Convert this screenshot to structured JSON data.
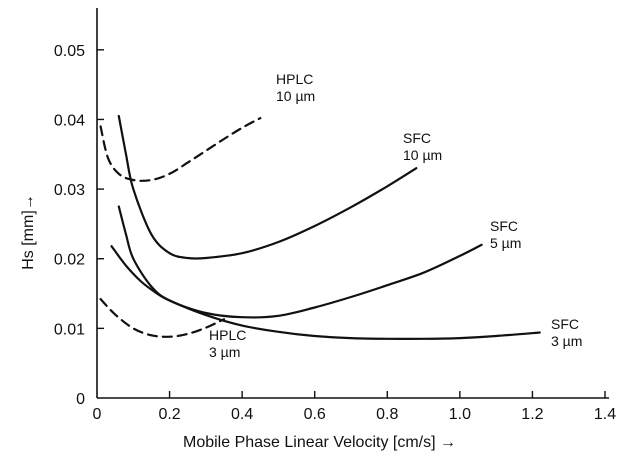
{
  "chart_data": {
    "type": "line",
    "title": "",
    "xlabel": "Mobile Phase  Linear Velocity [cm/s]   →",
    "ylabel": "Hs [mm]→",
    "xlim": [
      0,
      1.4
    ],
    "ylim": [
      0,
      0.055
    ],
    "x_ticks": [
      "0",
      "0.2",
      "0.4",
      "0.6",
      "0.8",
      "1.0",
      "1.2",
      "1.4"
    ],
    "y_ticks": [
      "0",
      "0.01",
      "0.02",
      "0.03",
      "0.04",
      "0.05"
    ],
    "grid": false,
    "series": [
      {
        "name_lines": [
          "HPLC",
          "10 µm"
        ],
        "dashed": true,
        "x": [
          0.01,
          0.03,
          0.06,
          0.1,
          0.15,
          0.2,
          0.25,
          0.3,
          0.35,
          0.4,
          0.45
        ],
        "y": [
          0.039,
          0.0345,
          0.0322,
          0.0313,
          0.0313,
          0.0322,
          0.0338,
          0.0355,
          0.0372,
          0.0388,
          0.0402
        ]
      },
      {
        "name_lines": [
          "HPLC",
          "3 µm"
        ],
        "dashed": true,
        "x": [
          0.01,
          0.05,
          0.1,
          0.15,
          0.2,
          0.25,
          0.3,
          0.35
        ],
        "y": [
          0.0142,
          0.012,
          0.01,
          0.009,
          0.0088,
          0.0092,
          0.0101,
          0.0113
        ]
      },
      {
        "name_lines": [
          "SFC",
          "10 µm"
        ],
        "dashed": false,
        "x": [
          0.06,
          0.08,
          0.1,
          0.15,
          0.2,
          0.25,
          0.3,
          0.4,
          0.5,
          0.6,
          0.7,
          0.8,
          0.88
        ],
        "y": [
          0.0405,
          0.035,
          0.03,
          0.0235,
          0.0208,
          0.0201,
          0.0201,
          0.0208,
          0.0224,
          0.0247,
          0.0274,
          0.0304,
          0.033
        ]
      },
      {
        "name_lines": [
          "SFC",
          "5 µm"
        ],
        "dashed": false,
        "x": [
          0.06,
          0.08,
          0.1,
          0.15,
          0.2,
          0.3,
          0.4,
          0.5,
          0.6,
          0.7,
          0.8,
          0.9,
          1.0,
          1.06
        ],
        "y": [
          0.0275,
          0.0235,
          0.02,
          0.016,
          0.014,
          0.0122,
          0.0116,
          0.0118,
          0.013,
          0.0145,
          0.0162,
          0.018,
          0.0204,
          0.022
        ]
      },
      {
        "name_lines": [
          "SFC",
          "3 µm"
        ],
        "dashed": false,
        "x": [
          0.04,
          0.08,
          0.12,
          0.16,
          0.2,
          0.3,
          0.4,
          0.5,
          0.6,
          0.7,
          0.8,
          0.9,
          1.0,
          1.1,
          1.22
        ],
        "y": [
          0.0218,
          0.019,
          0.0168,
          0.0152,
          0.014,
          0.0119,
          0.0104,
          0.0095,
          0.0089,
          0.0086,
          0.0085,
          0.0085,
          0.0086,
          0.0089,
          0.0094
        ]
      }
    ]
  }
}
